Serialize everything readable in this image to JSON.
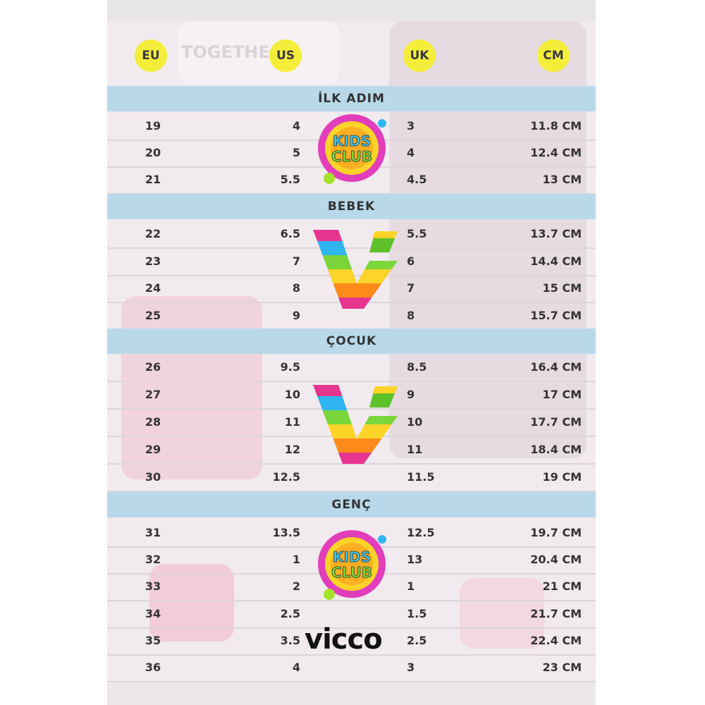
{
  "headers": [
    "EU",
    "US",
    "UK",
    "CM"
  ],
  "colors": {
    "header_circle": "#f4ee3a",
    "section_band": "#b9d9ea",
    "background": "#f1eaee",
    "text": "#333333"
  },
  "sections": [
    {
      "title": "İLK ADIM",
      "rows": [
        [
          "19",
          "4",
          "3",
          "11.8 CM"
        ],
        [
          "20",
          "5",
          "4",
          "12.4 CM"
        ],
        [
          "21",
          "5.5",
          "4.5",
          "13 CM"
        ]
      ]
    },
    {
      "title": "BEBEK",
      "rows": [
        [
          "22",
          "6.5",
          "5.5",
          "13.7 CM"
        ],
        [
          "23",
          "7",
          "6",
          "14.4 CM"
        ],
        [
          "24",
          "8",
          "7",
          "15 CM"
        ],
        [
          "25",
          "9",
          "8",
          "15.7 CM"
        ]
      ]
    },
    {
      "title": "ÇOCUK",
      "rows": [
        [
          "26",
          "9.5",
          "8.5",
          "16.4 CM"
        ],
        [
          "27",
          "10",
          "9",
          "17 CM"
        ],
        [
          "28",
          "11",
          "10",
          "17.7 CM"
        ],
        [
          "29",
          "12",
          "11",
          "18.4 CM"
        ],
        [
          "30",
          "12.5",
          "11.5",
          "19 CM"
        ]
      ]
    },
    {
      "title": "GENÇ",
      "rows": [
        [
          "31",
          "13.5",
          "12.5",
          "19.7 CM"
        ],
        [
          "32",
          "1",
          "13",
          "20.4 CM"
        ],
        [
          "33",
          "2",
          "1",
          "21 CM"
        ],
        [
          "34",
          "2.5",
          "1.5",
          "21.7 CM"
        ],
        [
          "35",
          "3.5",
          "2.5",
          "22.4 CM"
        ],
        [
          "36",
          "4",
          "3",
          "23 CM"
        ]
      ]
    }
  ],
  "logos": {
    "kids_club": "KIDS CLUB",
    "brand": "vicco"
  },
  "background_text": "TOGETHE"
}
